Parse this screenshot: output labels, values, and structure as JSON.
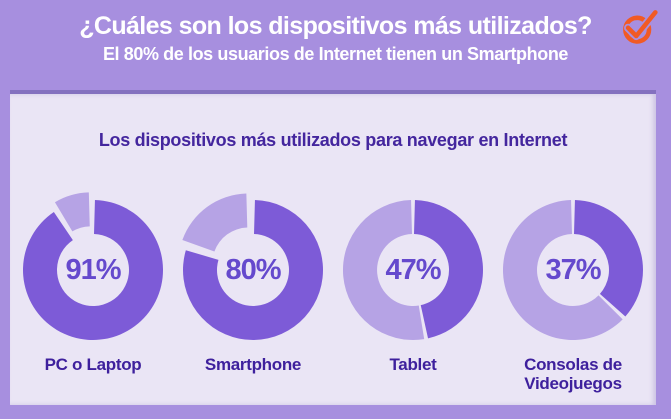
{
  "header": {
    "title": "¿Cuáles son los dispositivos más utilizados?",
    "subtitle": "El 80% de los usuarios de Internet tienen un Smartphone",
    "logo": {
      "icon": "check-circle-icon",
      "color": "#f15a24"
    }
  },
  "card": {
    "title": "Los dispositivos más utilizados para navegar en Internet"
  },
  "chart_data": {
    "type": "pie",
    "subtype": "donut",
    "title": "Los dispositivos más utilizados para navegar en Internet",
    "unit": "%",
    "legend_position": "none",
    "items": [
      {
        "label": "PC o Laptop",
        "value": 91,
        "pct_label": "91%",
        "exploded": true
      },
      {
        "label": "Smartphone",
        "value": 80,
        "pct_label": "80%",
        "exploded": true
      },
      {
        "label": "Tablet",
        "value": 47,
        "pct_label": "47%",
        "exploded": false
      },
      {
        "label": "Consolas de Videojuegos",
        "value": 37,
        "pct_label": "37%",
        "exploded": false
      }
    ],
    "colors": {
      "main_segment": "#7d5bd7",
      "remainder_segment": "#b6a3e5",
      "hole": "#eae5f5"
    }
  },
  "colors": {
    "background": "#a78fdf",
    "card_background": "#eae5f5",
    "card_top_border": "#8471bf",
    "header_text": "#ffffff",
    "card_title_text": "#44269e",
    "percent_text": "#6549cd",
    "label_text": "#3e209d",
    "logo_orange": "#f15a24"
  }
}
